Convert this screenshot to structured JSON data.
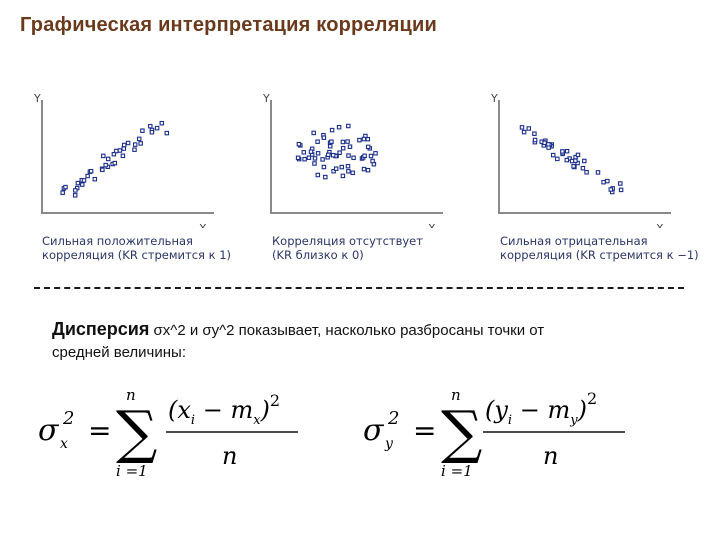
{
  "slide": {
    "title": "Графическая интерпретация корреляции"
  },
  "plots": [
    {
      "y_label": "Y",
      "x_label": "X",
      "caption_line1": "Сильная положительная",
      "caption_line2": "корреляция (KR стремится к 1)",
      "pattern": "positive"
    },
    {
      "y_label": "Y",
      "x_label": "X",
      "caption_line1": "Корреляция отсутствует",
      "caption_line2": "(KR близко к 0)",
      "pattern": "none"
    },
    {
      "y_label": "Y",
      "x_label": "X",
      "caption_line1": "Сильная отрицательная",
      "caption_line2": "корреляция (KR стремится к −1)",
      "pattern": "negative"
    }
  ],
  "dispersion": {
    "word": "Дисперсия",
    "rest_line1": " σx^2  и σy^2 показывает, насколько разбросаны точки от",
    "rest_line2": "средней величины:"
  },
  "formulas": {
    "x": {
      "lhs": "σx2 =",
      "sum_top": "n",
      "sum_bottom": "i =1",
      "numerator": "(xi − mx)2",
      "denominator": "n"
    },
    "y": {
      "lhs": "σy2 =",
      "sum_top": "n",
      "sum_bottom": "i =1",
      "numerator": "(yi − my)2",
      "denominator": "n"
    }
  },
  "colors": {
    "title": "#6b3a1c",
    "points": "#1b2f8a",
    "axes": "#8a8a8a",
    "caption": "#2a3566"
  }
}
